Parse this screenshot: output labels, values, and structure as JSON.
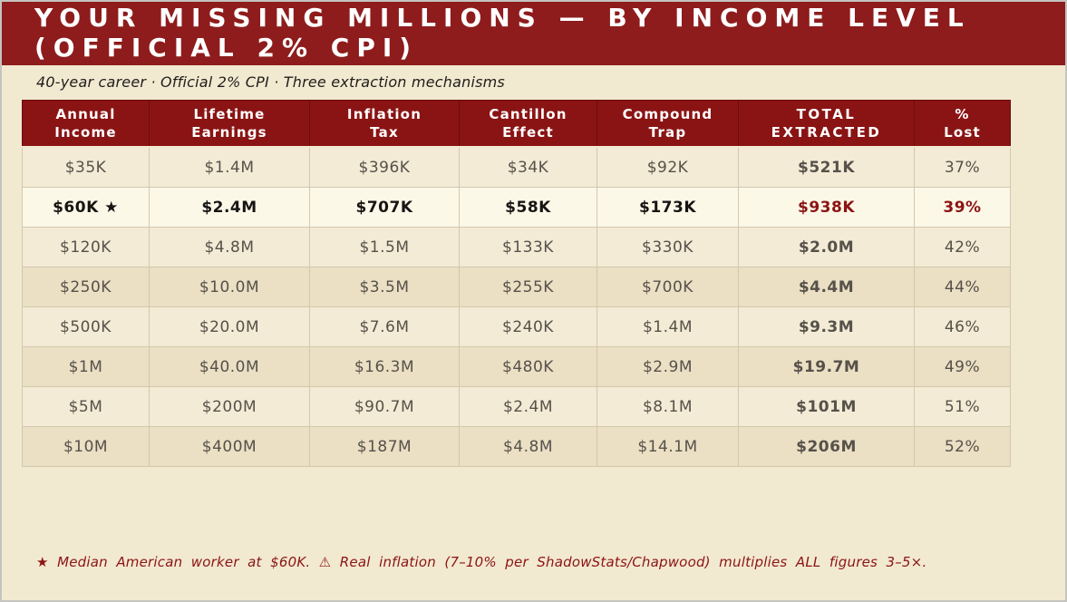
{
  "page": {
    "title_line1": "YOUR MISSING MILLIONS — BY INCOME LEVEL",
    "title_line2": "(OFFICIAL 2% CPI)",
    "subtitle": "40-year career · Official 2% CPI · Three extraction mechanisms",
    "footnote": "★ Median American worker at $60K. ⚠ Real inflation (7–10% per ShadowStats/Chapwood) multiplies ALL figures 3–5×."
  },
  "colors": {
    "title_band": "#8E1C1C",
    "header_bg": "#8A1414",
    "page_bg": "#F2E9D1",
    "row_light": "#F4EBD6",
    "row_dark": "#EBDFC4",
    "row_highlight": "#FCF8E8",
    "accent_red": "#8B1414"
  },
  "table": {
    "columns": [
      {
        "line1": "Annual",
        "line2": "Income"
      },
      {
        "line1": "Lifetime",
        "line2": "Earnings"
      },
      {
        "line1": "Inflation",
        "line2": "Tax"
      },
      {
        "line1": "Cantillon",
        "line2": "Effect"
      },
      {
        "line1": "Compound",
        "line2": "Trap"
      },
      {
        "line1": "TOTAL",
        "line2": "EXTRACTED"
      },
      {
        "line1": "%",
        "line2": "Lost"
      }
    ],
    "rows": [
      {
        "cells": [
          "$35K",
          "$1.4M",
          "$396K",
          "$34K",
          "$92K",
          "$521K",
          "37%"
        ],
        "highlight": false,
        "shade": "light"
      },
      {
        "cells": [
          "$60K ★",
          "$2.4M",
          "$707K",
          "$58K",
          "$173K",
          "$938K",
          "39%"
        ],
        "highlight": true,
        "shade": "highlight"
      },
      {
        "cells": [
          "$120K",
          "$4.8M",
          "$1.5M",
          "$133K",
          "$330K",
          "$2.0M",
          "42%"
        ],
        "highlight": false,
        "shade": "light"
      },
      {
        "cells": [
          "$250K",
          "$10.0M",
          "$3.5M",
          "$255K",
          "$700K",
          "$4.4M",
          "44%"
        ],
        "highlight": false,
        "shade": "dark"
      },
      {
        "cells": [
          "$500K",
          "$20.0M",
          "$7.6M",
          "$240K",
          "$1.4M",
          "$9.3M",
          "46%"
        ],
        "highlight": false,
        "shade": "light"
      },
      {
        "cells": [
          "$1M",
          "$40.0M",
          "$16.3M",
          "$480K",
          "$2.9M",
          "$19.7M",
          "49%"
        ],
        "highlight": false,
        "shade": "dark"
      },
      {
        "cells": [
          "$5M",
          "$200M",
          "$90.7M",
          "$2.4M",
          "$8.1M",
          "$101M",
          "51%"
        ],
        "highlight": false,
        "shade": "light"
      },
      {
        "cells": [
          "$10M",
          "$400M",
          "$187M",
          "$4.8M",
          "$14.1M",
          "$206M",
          "52%"
        ],
        "highlight": false,
        "shade": "dark"
      }
    ]
  }
}
